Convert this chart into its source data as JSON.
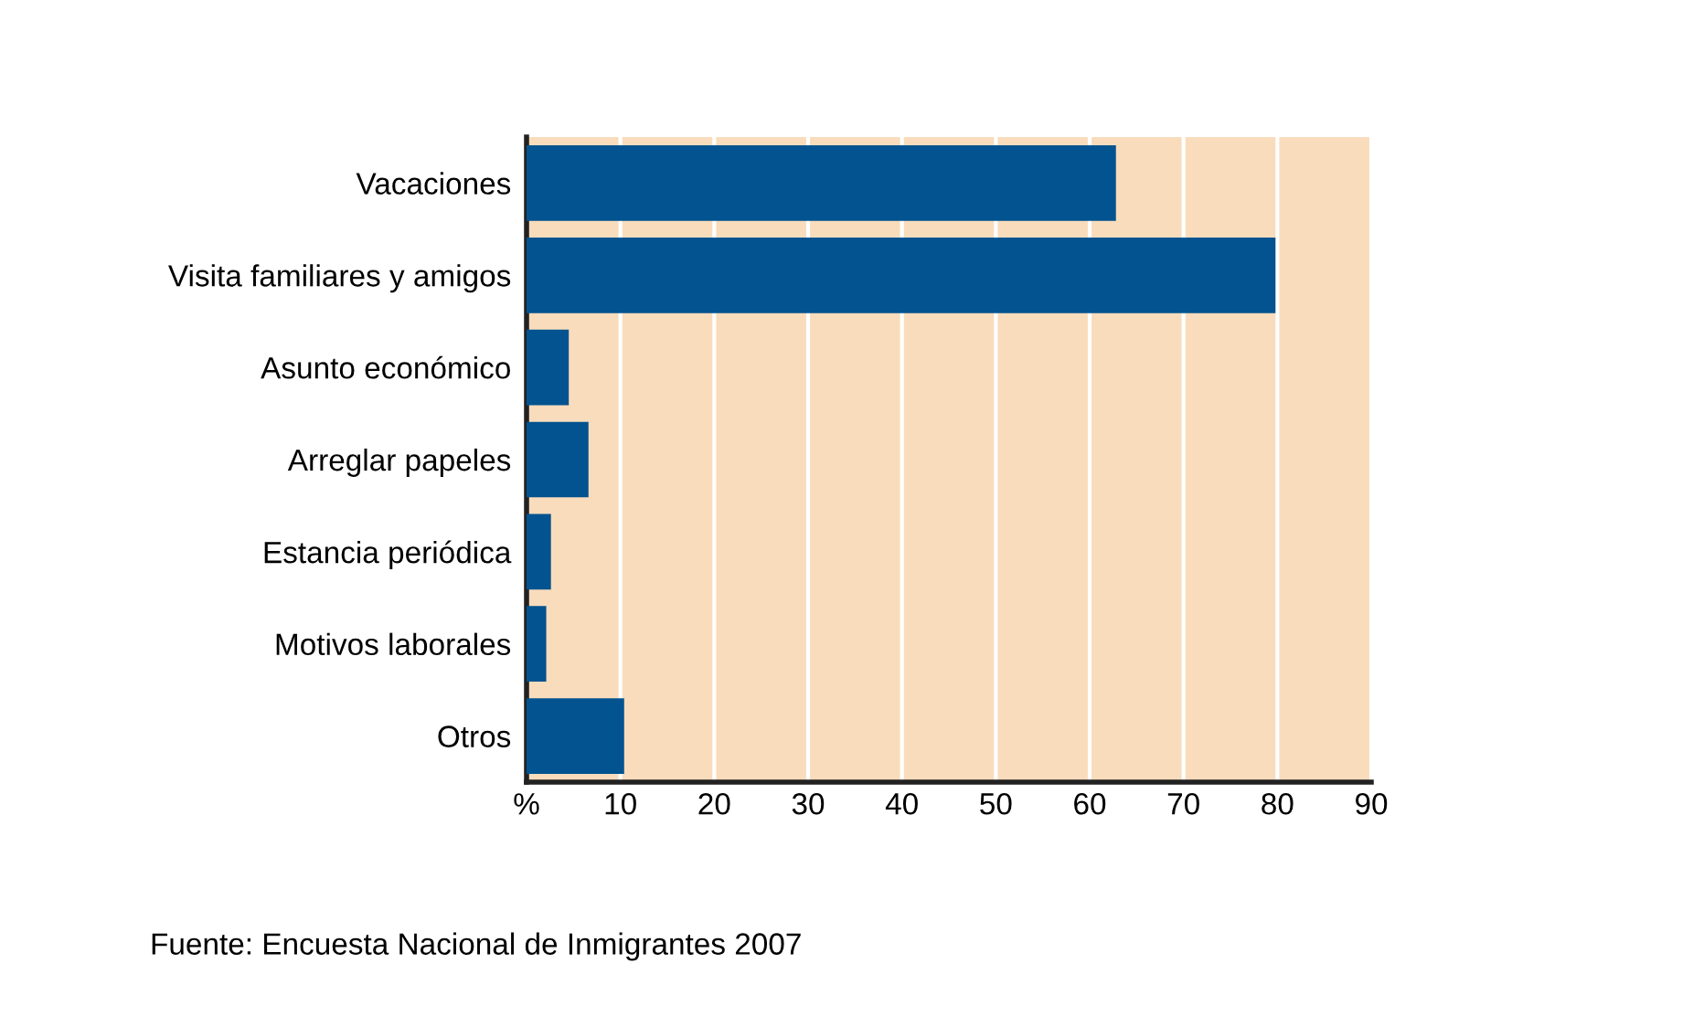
{
  "chart_data": {
    "type": "bar",
    "orientation": "horizontal",
    "categories": [
      "Vacaciones",
      "Visita familiares y amigos",
      "Asunto económico",
      "Arreglar papeles",
      "Estancia periódica",
      "Motivos laborales",
      "Otros"
    ],
    "values": [
      62.8,
      79.8,
      4.5,
      6.6,
      2.6,
      2.1,
      10.4
    ],
    "color": "#02538f",
    "xlim": [
      0,
      90
    ],
    "xticks": [
      {
        "value": 0,
        "label": "%"
      },
      10,
      20,
      30,
      40,
      50,
      60,
      70,
      80,
      90
    ],
    "grid": "x",
    "annotations": [
      "Fuente: Encuesta Nacional de Inmigrantes 2007"
    ]
  }
}
